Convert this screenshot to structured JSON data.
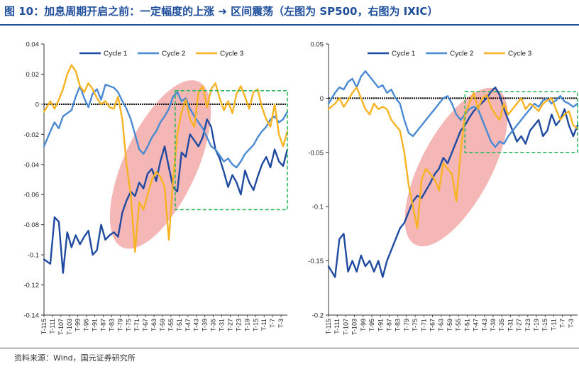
{
  "header": {
    "title": "图 10：加息周期开启之前：一定幅度的上涨 ➜ 区间震荡（左图为 SP500，右图为 IXIC）"
  },
  "footer": {
    "source": "资料来源：Wind，国元证券研究所"
  },
  "colors": {
    "cycle1": "#1f4aa0",
    "cycle2": "#4a8ad2",
    "cycle3": "#f7b321",
    "ellipse": "#f3a9a9",
    "box": "#2eb85c",
    "zero": "#000000",
    "title": "#1f4e9c"
  },
  "chart_data": [
    {
      "type": "line",
      "name": "SP500",
      "legend": [
        "Cycle 1",
        "Cycle 2",
        "Cycle 3"
      ],
      "ylim": [
        -0.14,
        0.04
      ],
      "yticks": [
        0.04,
        0.02,
        0,
        -0.02,
        -0.04,
        -0.06,
        -0.08,
        -0.1,
        -0.12,
        -0.14
      ],
      "ytick_labels": [
        "0.04",
        "0.02",
        "0",
        "-0.02",
        "-0.04",
        "-0.06",
        "-0.08",
        "-0.1",
        "-0.12",
        "-0.14"
      ],
      "x_labels": [
        "T-115",
        "T-111",
        "T-107",
        "T-103",
        "T-99",
        "T-95",
        "T-91",
        "T-87",
        "T-83",
        "T-79",
        "T-75",
        "T-71",
        "T-67",
        "T-63",
        "T-59",
        "T-55",
        "T-51",
        "T-47",
        "T-43",
        "T-39",
        "T-35",
        "T-31",
        "T-27",
        "T-23",
        "T-19",
        "T-15",
        "T-11",
        "T-7",
        "T-3"
      ],
      "x_range": [
        -115,
        0
      ],
      "series": [
        {
          "name": "Cycle 1",
          "x": [
            -115,
            -112,
            -110,
            -108,
            -106,
            -104,
            -102,
            -100,
            -98,
            -96,
            -94,
            -92,
            -90,
            -88,
            -86,
            -84,
            -82,
            -80,
            -78,
            -76,
            -74,
            -72,
            -70,
            -68,
            -66,
            -64,
            -62,
            -60,
            -58,
            -56,
            -54,
            -52,
            -50,
            -48,
            -46,
            -44,
            -42,
            -40,
            -38,
            -36,
            -34,
            -32,
            -30,
            -28,
            -26,
            -24,
            -22,
            -20,
            -18,
            -16,
            -14,
            -12,
            -10,
            -8,
            -6,
            -4,
            -2,
            0
          ],
          "values": [
            -0.103,
            -0.106,
            -0.075,
            -0.078,
            -0.112,
            -0.085,
            -0.095,
            -0.087,
            -0.093,
            -0.088,
            -0.084,
            -0.1,
            -0.097,
            -0.08,
            -0.09,
            -0.087,
            -0.085,
            -0.088,
            -0.072,
            -0.064,
            -0.058,
            -0.061,
            -0.052,
            -0.056,
            -0.046,
            -0.043,
            -0.051,
            -0.038,
            -0.028,
            -0.042,
            -0.055,
            -0.058,
            -0.032,
            -0.035,
            -0.02,
            -0.024,
            -0.028,
            -0.022,
            -0.01,
            -0.015,
            -0.03,
            -0.036,
            -0.045,
            -0.055,
            -0.047,
            -0.052,
            -0.06,
            -0.044,
            -0.052,
            -0.057,
            -0.048,
            -0.04,
            -0.035,
            -0.042,
            -0.03,
            -0.038,
            -0.041,
            -0.03
          ]
        },
        {
          "name": "Cycle 2",
          "x": [
            -115,
            -112,
            -110,
            -108,
            -106,
            -104,
            -102,
            -100,
            -98,
            -96,
            -94,
            -92,
            -90,
            -88,
            -86,
            -84,
            -82,
            -80,
            -78,
            -76,
            -74,
            -72,
            -70,
            -68,
            -66,
            -64,
            -62,
            -60,
            -58,
            -56,
            -54,
            -52,
            -50,
            -48,
            -46,
            -44,
            -42,
            -40,
            -38,
            -36,
            -34,
            -32,
            -30,
            -28,
            -26,
            -24,
            -22,
            -20,
            -18,
            -16,
            -14,
            -12,
            -10,
            -8,
            -6,
            -4,
            -2,
            0
          ],
          "values": [
            -0.028,
            -0.018,
            -0.012,
            -0.016,
            -0.008,
            -0.006,
            -0.004,
            0.005,
            0.012,
            0.004,
            -0.002,
            0.007,
            0.01,
            0.003,
            0.013,
            0.012,
            0.011,
            0.008,
            0.002,
            -0.003,
            -0.01,
            -0.02,
            -0.03,
            -0.033,
            -0.028,
            -0.022,
            -0.018,
            -0.012,
            -0.008,
            -0.003,
            0.005,
            0.008,
            0.002,
            0.004,
            -0.003,
            -0.008,
            -0.012,
            -0.016,
            -0.022,
            -0.028,
            -0.03,
            -0.034,
            -0.038,
            -0.036,
            -0.04,
            -0.042,
            -0.038,
            -0.033,
            -0.03,
            -0.027,
            -0.022,
            -0.018,
            -0.015,
            -0.01,
            -0.008,
            -0.012,
            -0.01,
            -0.005
          ]
        },
        {
          "name": "Cycle 3",
          "x": [
            -115,
            -112,
            -110,
            -108,
            -106,
            -104,
            -102,
            -100,
            -98,
            -96,
            -94,
            -92,
            -90,
            -88,
            -86,
            -84,
            -82,
            -80,
            -78,
            -76,
            -74,
            -72,
            -70,
            -68,
            -66,
            -64,
            -62,
            -60,
            -58,
            -56,
            -54,
            -52,
            -50,
            -48,
            -46,
            -44,
            -42,
            -40,
            -38,
            -36,
            -34,
            -32,
            -30,
            -28,
            -26,
            -24,
            -22,
            -20,
            -18,
            -16,
            -14,
            -12,
            -10,
            -8,
            -6,
            -4,
            -2,
            0
          ],
          "values": [
            -0.005,
            0.002,
            -0.003,
            0.003,
            0.01,
            0.02,
            0.026,
            0.022,
            0.012,
            0.008,
            0.014,
            0.01,
            0.004,
            0.0,
            0.002,
            -0.002,
            -0.003,
            0.005,
            -0.01,
            -0.04,
            -0.06,
            -0.098,
            -0.065,
            -0.07,
            -0.06,
            -0.05,
            -0.045,
            -0.048,
            -0.055,
            -0.09,
            -0.05,
            -0.02,
            -0.005,
            0.003,
            -0.01,
            -0.015,
            0.008,
            0.012,
            -0.002,
            0.01,
            0.014,
            0.004,
            -0.004,
            0.002,
            -0.006,
            0.007,
            0.012,
            0.005,
            -0.003,
            0.008,
            0.01,
            -0.002,
            -0.01,
            -0.015,
            0.0,
            -0.02,
            -0.028,
            -0.018
          ]
        }
      ],
      "annotations": {
        "ellipse": {
          "x_range": [
            -78,
            -42
          ],
          "y_range": [
            -0.095,
            0.015
          ]
        },
        "box": {
          "x_range": [
            -53,
            0
          ],
          "y_range": [
            -0.07,
            0.009
          ]
        }
      }
    },
    {
      "type": "line",
      "name": "IXIC",
      "legend": [
        "Cycle 1",
        "Cycle 2",
        "Cycle 3"
      ],
      "ylim": [
        -0.2,
        0.05
      ],
      "yticks": [
        0.05,
        0,
        -0.05,
        -0.1,
        -0.15,
        -0.2
      ],
      "ytick_labels": [
        "0.05",
        "0",
        "-0.05",
        "-0.1",
        "-0.15",
        "-0.2"
      ],
      "x_labels": [
        "T-115",
        "T-111",
        "T-107",
        "T-103",
        "T-99",
        "T-95",
        "T-91",
        "T-87",
        "T-83",
        "T-79",
        "T-75",
        "T-71",
        "T-67",
        "T-63",
        "T-59",
        "T-55",
        "T-51",
        "T-47",
        "T-43",
        "T-39",
        "T-35",
        "T-31",
        "T-27",
        "T-23",
        "T-19",
        "T-15",
        "T-11",
        "T-7",
        "T-3"
      ],
      "x_range": [
        -115,
        0
      ],
      "series": [
        {
          "name": "Cycle 1",
          "x": [
            -115,
            -112,
            -110,
            -108,
            -106,
            -104,
            -102,
            -100,
            -98,
            -96,
            -94,
            -92,
            -90,
            -88,
            -86,
            -84,
            -82,
            -80,
            -78,
            -76,
            -74,
            -72,
            -70,
            -68,
            -66,
            -64,
            -62,
            -60,
            -58,
            -56,
            -54,
            -52,
            -50,
            -48,
            -46,
            -44,
            -42,
            -40,
            -38,
            -36,
            -34,
            -32,
            -30,
            -28,
            -26,
            -24,
            -22,
            -20,
            -18,
            -16,
            -14,
            -12,
            -10,
            -8,
            -6,
            -4,
            -2,
            0
          ],
          "values": [
            -0.155,
            -0.165,
            -0.13,
            -0.125,
            -0.16,
            -0.15,
            -0.16,
            -0.145,
            -0.155,
            -0.15,
            -0.16,
            -0.15,
            -0.165,
            -0.15,
            -0.14,
            -0.13,
            -0.12,
            -0.115,
            -0.105,
            -0.095,
            -0.09,
            -0.092,
            -0.085,
            -0.078,
            -0.07,
            -0.065,
            -0.055,
            -0.06,
            -0.05,
            -0.04,
            -0.03,
            -0.025,
            -0.018,
            -0.012,
            -0.008,
            -0.004,
            0.0,
            0.006,
            0.01,
            0.003,
            -0.01,
            -0.02,
            -0.03,
            -0.04,
            -0.035,
            -0.042,
            -0.03,
            -0.025,
            -0.02,
            -0.035,
            -0.03,
            -0.015,
            -0.025,
            -0.02,
            -0.01,
            -0.025,
            -0.035,
            -0.025
          ]
        },
        {
          "name": "Cycle 2",
          "x": [
            -115,
            -112,
            -110,
            -108,
            -106,
            -104,
            -102,
            -100,
            -98,
            -96,
            -94,
            -92,
            -90,
            -88,
            -86,
            -84,
            -82,
            -80,
            -78,
            -76,
            -74,
            -72,
            -70,
            -68,
            -66,
            -64,
            -62,
            -60,
            -58,
            -56,
            -54,
            -52,
            -50,
            -48,
            -46,
            -44,
            -42,
            -40,
            -38,
            -36,
            -34,
            -32,
            -30,
            -28,
            -26,
            -24,
            -22,
            -20,
            -18,
            -16,
            -14,
            -12,
            -10,
            -8,
            -6,
            -4,
            -2,
            0
          ],
          "values": [
            -0.005,
            0.005,
            0.01,
            0.008,
            0.015,
            0.018,
            0.01,
            0.02,
            0.025,
            0.02,
            0.015,
            0.01,
            0.012,
            0.005,
            0.008,
            0.0,
            -0.005,
            -0.02,
            -0.032,
            -0.035,
            -0.03,
            -0.025,
            -0.02,
            -0.015,
            -0.01,
            -0.005,
            0.0,
            0.002,
            -0.005,
            -0.015,
            -0.02,
            -0.015,
            -0.01,
            -0.008,
            -0.01,
            -0.02,
            -0.03,
            -0.04,
            -0.045,
            -0.04,
            -0.042,
            -0.035,
            -0.03,
            -0.025,
            -0.02,
            -0.015,
            -0.01,
            -0.005,
            -0.008,
            -0.002,
            0.0,
            -0.005,
            -0.002,
            0.002,
            -0.003,
            -0.005,
            -0.008,
            -0.005
          ]
        },
        {
          "name": "Cycle 3",
          "x": [
            -115,
            -112,
            -110,
            -108,
            -106,
            -104,
            -102,
            -100,
            -98,
            -96,
            -94,
            -92,
            -90,
            -88,
            -86,
            -84,
            -82,
            -80,
            -78,
            -76,
            -74,
            -72,
            -70,
            -68,
            -66,
            -64,
            -62,
            -60,
            -58,
            -56,
            -54,
            -52,
            -50,
            -48,
            -46,
            -44,
            -42,
            -40,
            -38,
            -36,
            -34,
            -32,
            -30,
            -28,
            -26,
            -24,
            -22,
            -20,
            -18,
            -16,
            -14,
            -12,
            -10,
            -8,
            -6,
            -4,
            -2,
            0
          ],
          "values": [
            -0.01,
            -0.005,
            0.0,
            -0.008,
            -0.002,
            0.005,
            0.01,
            0.0,
            -0.01,
            -0.015,
            -0.005,
            -0.01,
            -0.008,
            -0.01,
            -0.02,
            -0.025,
            -0.03,
            -0.05,
            -0.08,
            -0.1,
            -0.12,
            -0.075,
            -0.065,
            -0.07,
            -0.075,
            -0.085,
            -0.06,
            -0.065,
            -0.07,
            -0.095,
            -0.05,
            -0.015,
            -0.005,
            0.005,
            -0.01,
            0.0,
            0.003,
            -0.008,
            -0.015,
            -0.02,
            -0.005,
            -0.015,
            -0.01,
            -0.005,
            0.0,
            -0.01,
            -0.005,
            -0.008,
            -0.012,
            -0.005,
            -0.002,
            0.0,
            -0.01,
            -0.02,
            -0.015,
            -0.012,
            -0.025,
            -0.028
          ]
        }
      ],
      "annotations": {
        "ellipse": {
          "x_range": [
            -75,
            -37
          ],
          "y_range": [
            -0.135,
            0.008
          ]
        },
        "box": {
          "x_range": [
            -52,
            0
          ],
          "y_range": [
            -0.05,
            0.006
          ]
        }
      }
    }
  ]
}
